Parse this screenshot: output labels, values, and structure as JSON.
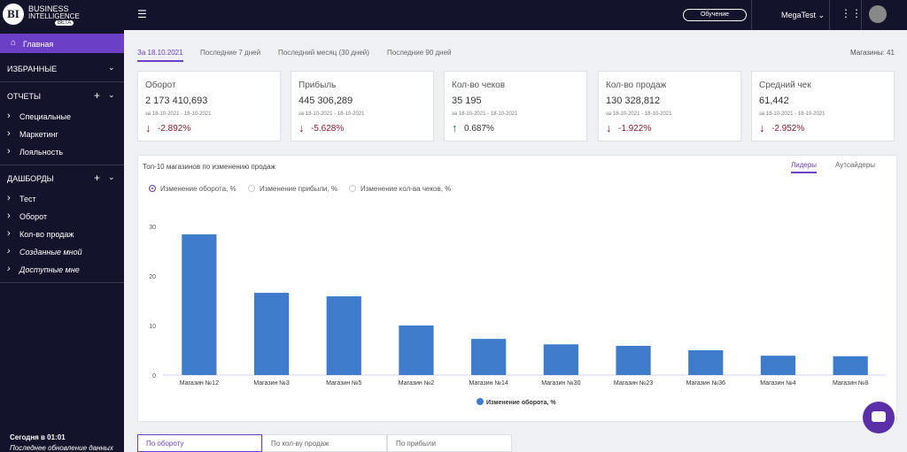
{
  "sidebar": {
    "logo": {
      "mark": "BI",
      "line1": "BUSINESS",
      "line2": "INTELLIGENCE",
      "badge": "BETA"
    },
    "home": "Главная",
    "favorites": "ИЗБРАННЫЕ",
    "reports": {
      "title": "ОТЧЕТЫ",
      "items": [
        "Специальные",
        "Маркетинг",
        "Лояльность"
      ]
    },
    "dashboards": {
      "title": "ДАШБОРДЫ",
      "items": [
        "Тест",
        "Оборот",
        "Кол-во продаж",
        "Созданные мной",
        "Доступные мне"
      ]
    },
    "footer": {
      "today": "Сегодня в 01:01",
      "updated": "Последнее обновление данных"
    }
  },
  "topbar": {
    "training": "Обучение",
    "user": "MegaTest"
  },
  "period_tabs": [
    "За 18.10.2021",
    "Последние 7 дней",
    "Последний месяц (30 дней)",
    "Последние 90 дней"
  ],
  "stores_count": "Магазины: 41",
  "kpis": [
    {
      "title": "Оборот",
      "value": "2 173 410,693",
      "period": "за 18-10-2021 - 18-10-2021",
      "change": "-2.892%"
    },
    {
      "title": "Прибыль",
      "value": "445 306,289",
      "period": "за 18-10-2021 - 18-10-2021",
      "change": "-5.628%"
    },
    {
      "title": "Кол-во чеков",
      "value": "35 195",
      "period": "за 18-10-2021 - 18-10-2021",
      "change": "0.687%"
    },
    {
      "title": "Кол-во продаж",
      "value": "130 328,812",
      "period": "за 18-10-2021 - 18-10-2021",
      "change": "-1.922%"
    },
    {
      "title": "Средний чек",
      "value": "61,442",
      "period": "за 18-10-2021 - 18-10-2021",
      "change": "-2.952%"
    }
  ],
  "chart_panel": {
    "title": "Топ-10 магазинов по изменению продаж",
    "tabs": [
      "Лидеры",
      "Аутсайдеры"
    ],
    "radios": [
      "Изменение оборота, %",
      "Изменение прибыли, %",
      "Изменение кол-ва чеков, %"
    ]
  },
  "chart_data": {
    "type": "bar",
    "categories": [
      "Магазин №12",
      "Магазин №3",
      "Магазин №5",
      "Магазин №2",
      "Магазин №14",
      "Магазин №30",
      "Магазин №23",
      "Магазин №36",
      "Магазин №4",
      "Магазин №8"
    ],
    "series": [
      {
        "name": "Изменение оборота, %",
        "color": "#3f7bcb",
        "values": [
          28.4,
          16.6,
          15.9,
          10.0,
          7.3,
          6.2,
          5.9,
          5.0,
          3.9,
          3.8
        ]
      }
    ],
    "ylim": [
      0,
      30
    ],
    "yticks": [
      0,
      10,
      20,
      30
    ],
    "grid": false
  },
  "bottom_tabs": [
    "По обороту",
    "По кол-ву продаж",
    "По прибыли"
  ]
}
